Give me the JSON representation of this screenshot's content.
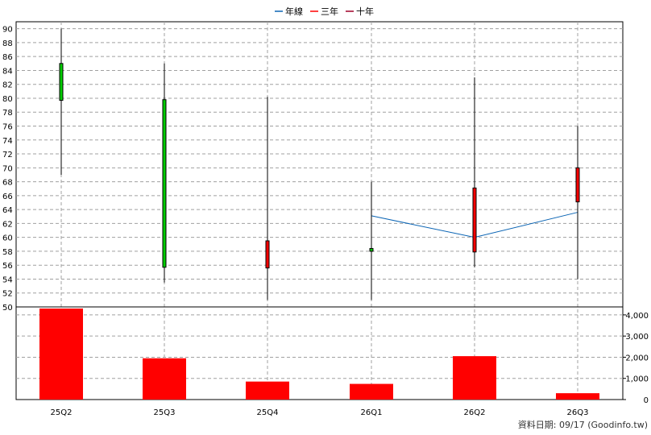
{
  "chart_data": {
    "type": "candlestick",
    "legend": [
      {
        "label": "年線",
        "color": "#0a64b4"
      },
      {
        "label": "三年",
        "color": "#ff0000"
      },
      {
        "label": "十年",
        "color": "#a00028"
      }
    ],
    "categories": [
      "25Q2",
      "25Q3",
      "25Q4",
      "26Q1",
      "26Q2",
      "26Q3"
    ],
    "price_axis": {
      "ylim": [
        50,
        91
      ],
      "ticks": [
        50,
        52,
        54,
        56,
        58,
        60,
        62,
        64,
        66,
        68,
        70,
        72,
        74,
        76,
        78,
        80,
        82,
        84,
        86,
        88,
        90
      ]
    },
    "candles": [
      {
        "quarter": "25Q2",
        "open": 85.0,
        "high": 90.0,
        "low": 69.0,
        "close": 79.7,
        "color": "#00cc00"
      },
      {
        "quarter": "25Q3",
        "open": 79.8,
        "high": 85.0,
        "low": 53.5,
        "close": 55.7,
        "color": "#00cc00"
      },
      {
        "quarter": "25Q4",
        "open": 55.6,
        "high": 80.2,
        "low": 51.0,
        "close": 59.5,
        "color": "#ff0000"
      },
      {
        "quarter": "26Q1",
        "open": 58.4,
        "high": 68.0,
        "low": 51.0,
        "close": 58.0,
        "color": "#00cc00"
      },
      {
        "quarter": "26Q2",
        "open": 57.9,
        "high": 83.0,
        "low": 55.7,
        "close": 67.1,
        "color": "#ff0000"
      },
      {
        "quarter": "26Q3",
        "open": 65.1,
        "high": 76.0,
        "low": 54.0,
        "close": 70.0,
        "color": "#ff0000"
      }
    ],
    "ma_line": {
      "name": "年線",
      "color": "#0a64b4",
      "points": [
        {
          "quarter": "26Q1",
          "value": 63.1
        },
        {
          "quarter": "26Q2",
          "value": 60.0
        },
        {
          "quarter": "26Q3",
          "value": 63.6
        }
      ]
    },
    "volume_axis": {
      "ylim": [
        0,
        4300
      ],
      "ticks": [
        0,
        1000,
        2000,
        3000,
        4000
      ],
      "tick_labels": [
        "0",
        "1,000",
        "2,000",
        "3,000",
        "4,000"
      ]
    },
    "volumes": [
      4300,
      1950,
      850,
      740,
      2050,
      300
    ],
    "volume_color": "#ff0000",
    "grid": true
  },
  "footer": {
    "text": "資料日期: 09/17  (Goodinfo.tw)"
  }
}
